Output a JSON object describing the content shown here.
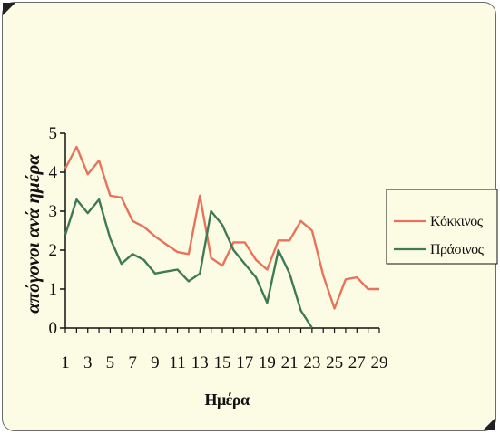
{
  "chart_data": {
    "type": "line",
    "title": "",
    "xlabel": "Ημέρα",
    "ylabel": "απόγονοι ανά ημέρα",
    "x": [
      1,
      2,
      3,
      4,
      5,
      6,
      7,
      8,
      9,
      10,
      11,
      12,
      13,
      14,
      15,
      16,
      17,
      18,
      19,
      20,
      21,
      22,
      23,
      24,
      25,
      26,
      27,
      28,
      29
    ],
    "x_tick_labels": [
      "1",
      "3",
      "5",
      "7",
      "9",
      "11",
      "13",
      "15",
      "17",
      "19",
      "21",
      "23",
      "25",
      "27",
      "29"
    ],
    "y_tick_labels": [
      "0",
      "1",
      "2",
      "3",
      "4",
      "5"
    ],
    "ylim": [
      0,
      5
    ],
    "xlim": [
      1,
      29
    ],
    "grid": false,
    "legend_position": "right",
    "series": [
      {
        "name": "Κόκκινος",
        "color": "#e8735a",
        "values": [
          4.1,
          4.65,
          3.95,
          4.3,
          3.4,
          3.35,
          2.75,
          2.6,
          2.35,
          2.15,
          1.95,
          1.9,
          3.4,
          1.8,
          1.6,
          2.2,
          2.2,
          1.75,
          1.5,
          2.25,
          2.25,
          2.75,
          2.5,
          1.35,
          0.5,
          1.25,
          1.3,
          1.0,
          1.0
        ]
      },
      {
        "name": "Πράσινος",
        "color": "#3f7a55",
        "values": [
          2.4,
          3.3,
          2.95,
          3.3,
          2.3,
          1.65,
          1.9,
          1.75,
          1.4,
          1.45,
          1.5,
          1.2,
          1.4,
          3.0,
          2.65,
          2.0,
          1.65,
          1.3,
          0.65,
          2.0,
          1.4,
          0.45,
          0.0,
          null,
          null,
          null,
          null,
          null,
          null
        ]
      }
    ]
  }
}
